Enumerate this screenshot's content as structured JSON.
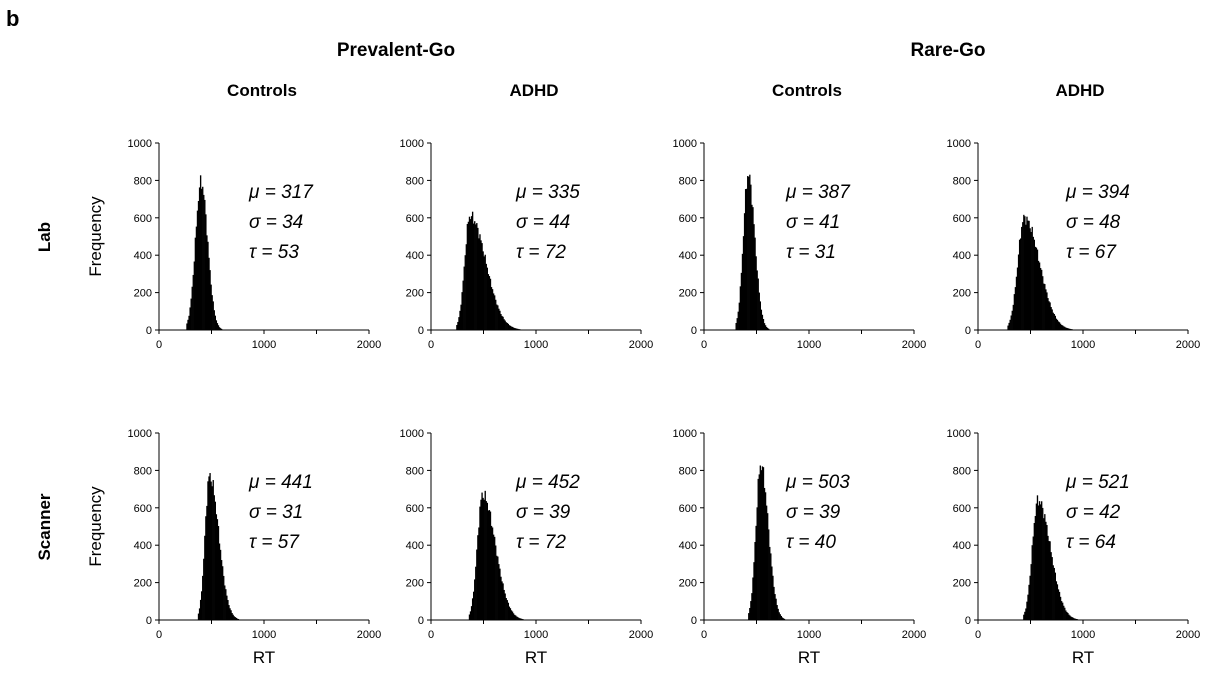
{
  "figure": {
    "panel_letter": "b",
    "conditions": [
      "Prevalent-Go",
      "Rare-Go"
    ],
    "groups": [
      "Controls",
      "ADHD",
      "Controls",
      "ADHD"
    ],
    "rows": [
      "Lab",
      "Scanner"
    ],
    "ylabel": "Frequency",
    "xlabel": "RT"
  },
  "chart_data": [
    {
      "type": "bar",
      "condition": "Prevalent-Go",
      "group": "Controls",
      "session": "Lab",
      "xlim": [
        0,
        2000
      ],
      "ylim": [
        0,
        1000
      ],
      "xticks": [
        "0",
        "1000",
        "2000"
      ],
      "yticks": [
        "0",
        "200",
        "400",
        "600",
        "800",
        "1000"
      ],
      "ylabel": "Frequency",
      "xlabel": "",
      "peak": {
        "x": 400,
        "y": 790
      },
      "support": [
        260,
        600
      ],
      "annotations": [
        "μ = 317",
        "σ = 34",
        "τ = 53"
      ]
    },
    {
      "type": "bar",
      "condition": "Prevalent-Go",
      "group": "ADHD",
      "session": "Lab",
      "xlim": [
        0,
        2000
      ],
      "ylim": [
        0,
        1000
      ],
      "xticks": [
        "0",
        "1000",
        "2000"
      ],
      "yticks": [
        "0",
        "200",
        "400",
        "600",
        "800",
        "1000"
      ],
      "ylabel": "",
      "xlabel": "",
      "peak": {
        "x": 370,
        "y": 610
      },
      "support": [
        240,
        850
      ],
      "annotations": [
        "μ = 335",
        "σ = 44",
        "τ = 72"
      ]
    },
    {
      "type": "bar",
      "condition": "Rare-Go",
      "group": "Controls",
      "session": "Lab",
      "xlim": [
        0,
        2000
      ],
      "ylim": [
        0,
        1000
      ],
      "xticks": [
        "0",
        "1000",
        "2000"
      ],
      "yticks": [
        "0",
        "200",
        "400",
        "600",
        "800",
        "1000"
      ],
      "ylabel": "",
      "xlabel": "",
      "peak": {
        "x": 420,
        "y": 830
      },
      "support": [
        300,
        620
      ],
      "annotations": [
        "μ = 387",
        "σ = 41",
        "τ = 31"
      ]
    },
    {
      "type": "bar",
      "condition": "Rare-Go",
      "group": "ADHD",
      "session": "Lab",
      "xlim": [
        0,
        2000
      ],
      "ylim": [
        0,
        1000
      ],
      "xticks": [
        "0",
        "1000",
        "2000"
      ],
      "yticks": [
        "0",
        "200",
        "400",
        "600",
        "800",
        "1000"
      ],
      "ylabel": "",
      "xlabel": "",
      "peak": {
        "x": 440,
        "y": 600
      },
      "support": [
        280,
        900
      ],
      "annotations": [
        "μ = 394",
        "σ = 48",
        "τ = 67"
      ]
    },
    {
      "type": "bar",
      "condition": "Prevalent-Go",
      "group": "Controls",
      "session": "Scanner",
      "xlim": [
        0,
        2000
      ],
      "ylim": [
        0,
        1000
      ],
      "xticks": [
        "0",
        "1000",
        "2000"
      ],
      "yticks": [
        "0",
        "200",
        "400",
        "600",
        "800",
        "1000"
      ],
      "ylabel": "Frequency",
      "xlabel": "RT",
      "peak": {
        "x": 480,
        "y": 770
      },
      "support": [
        370,
        760
      ],
      "annotations": [
        "μ = 441",
        "σ = 31",
        "τ = 57"
      ]
    },
    {
      "type": "bar",
      "condition": "Prevalent-Go",
      "group": "ADHD",
      "session": "Scanner",
      "xlim": [
        0,
        2000
      ],
      "ylim": [
        0,
        1000
      ],
      "xticks": [
        "0",
        "1000",
        "2000"
      ],
      "yticks": [
        "0",
        "200",
        "400",
        "600",
        "800",
        "1000"
      ],
      "ylabel": "",
      "xlabel": "RT",
      "peak": {
        "x": 490,
        "y": 670
      },
      "support": [
        360,
        880
      ],
      "annotations": [
        "μ = 452",
        "σ = 39",
        "τ = 72"
      ]
    },
    {
      "type": "bar",
      "condition": "Rare-Go",
      "group": "Controls",
      "session": "Scanner",
      "xlim": [
        0,
        2000
      ],
      "ylim": [
        0,
        1000
      ],
      "xticks": [
        "0",
        "1000",
        "2000"
      ],
      "yticks": [
        "0",
        "200",
        "400",
        "600",
        "800",
        "1000"
      ],
      "ylabel": "",
      "xlabel": "RT",
      "peak": {
        "x": 540,
        "y": 830
      },
      "support": [
        420,
        770
      ],
      "annotations": [
        "μ = 503",
        "σ = 39",
        "τ = 40"
      ]
    },
    {
      "type": "bar",
      "condition": "Rare-Go",
      "group": "ADHD",
      "session": "Scanner",
      "xlim": [
        0,
        2000
      ],
      "ylim": [
        0,
        1000
      ],
      "xticks": [
        "0",
        "1000",
        "2000"
      ],
      "yticks": [
        "0",
        "200",
        "400",
        "600",
        "800",
        "1000"
      ],
      "ylabel": "",
      "xlabel": "RT",
      "peak": {
        "x": 570,
        "y": 640
      },
      "support": [
        430,
        950
      ],
      "annotations": [
        "μ = 521",
        "σ = 42",
        "τ = 64"
      ]
    }
  ]
}
